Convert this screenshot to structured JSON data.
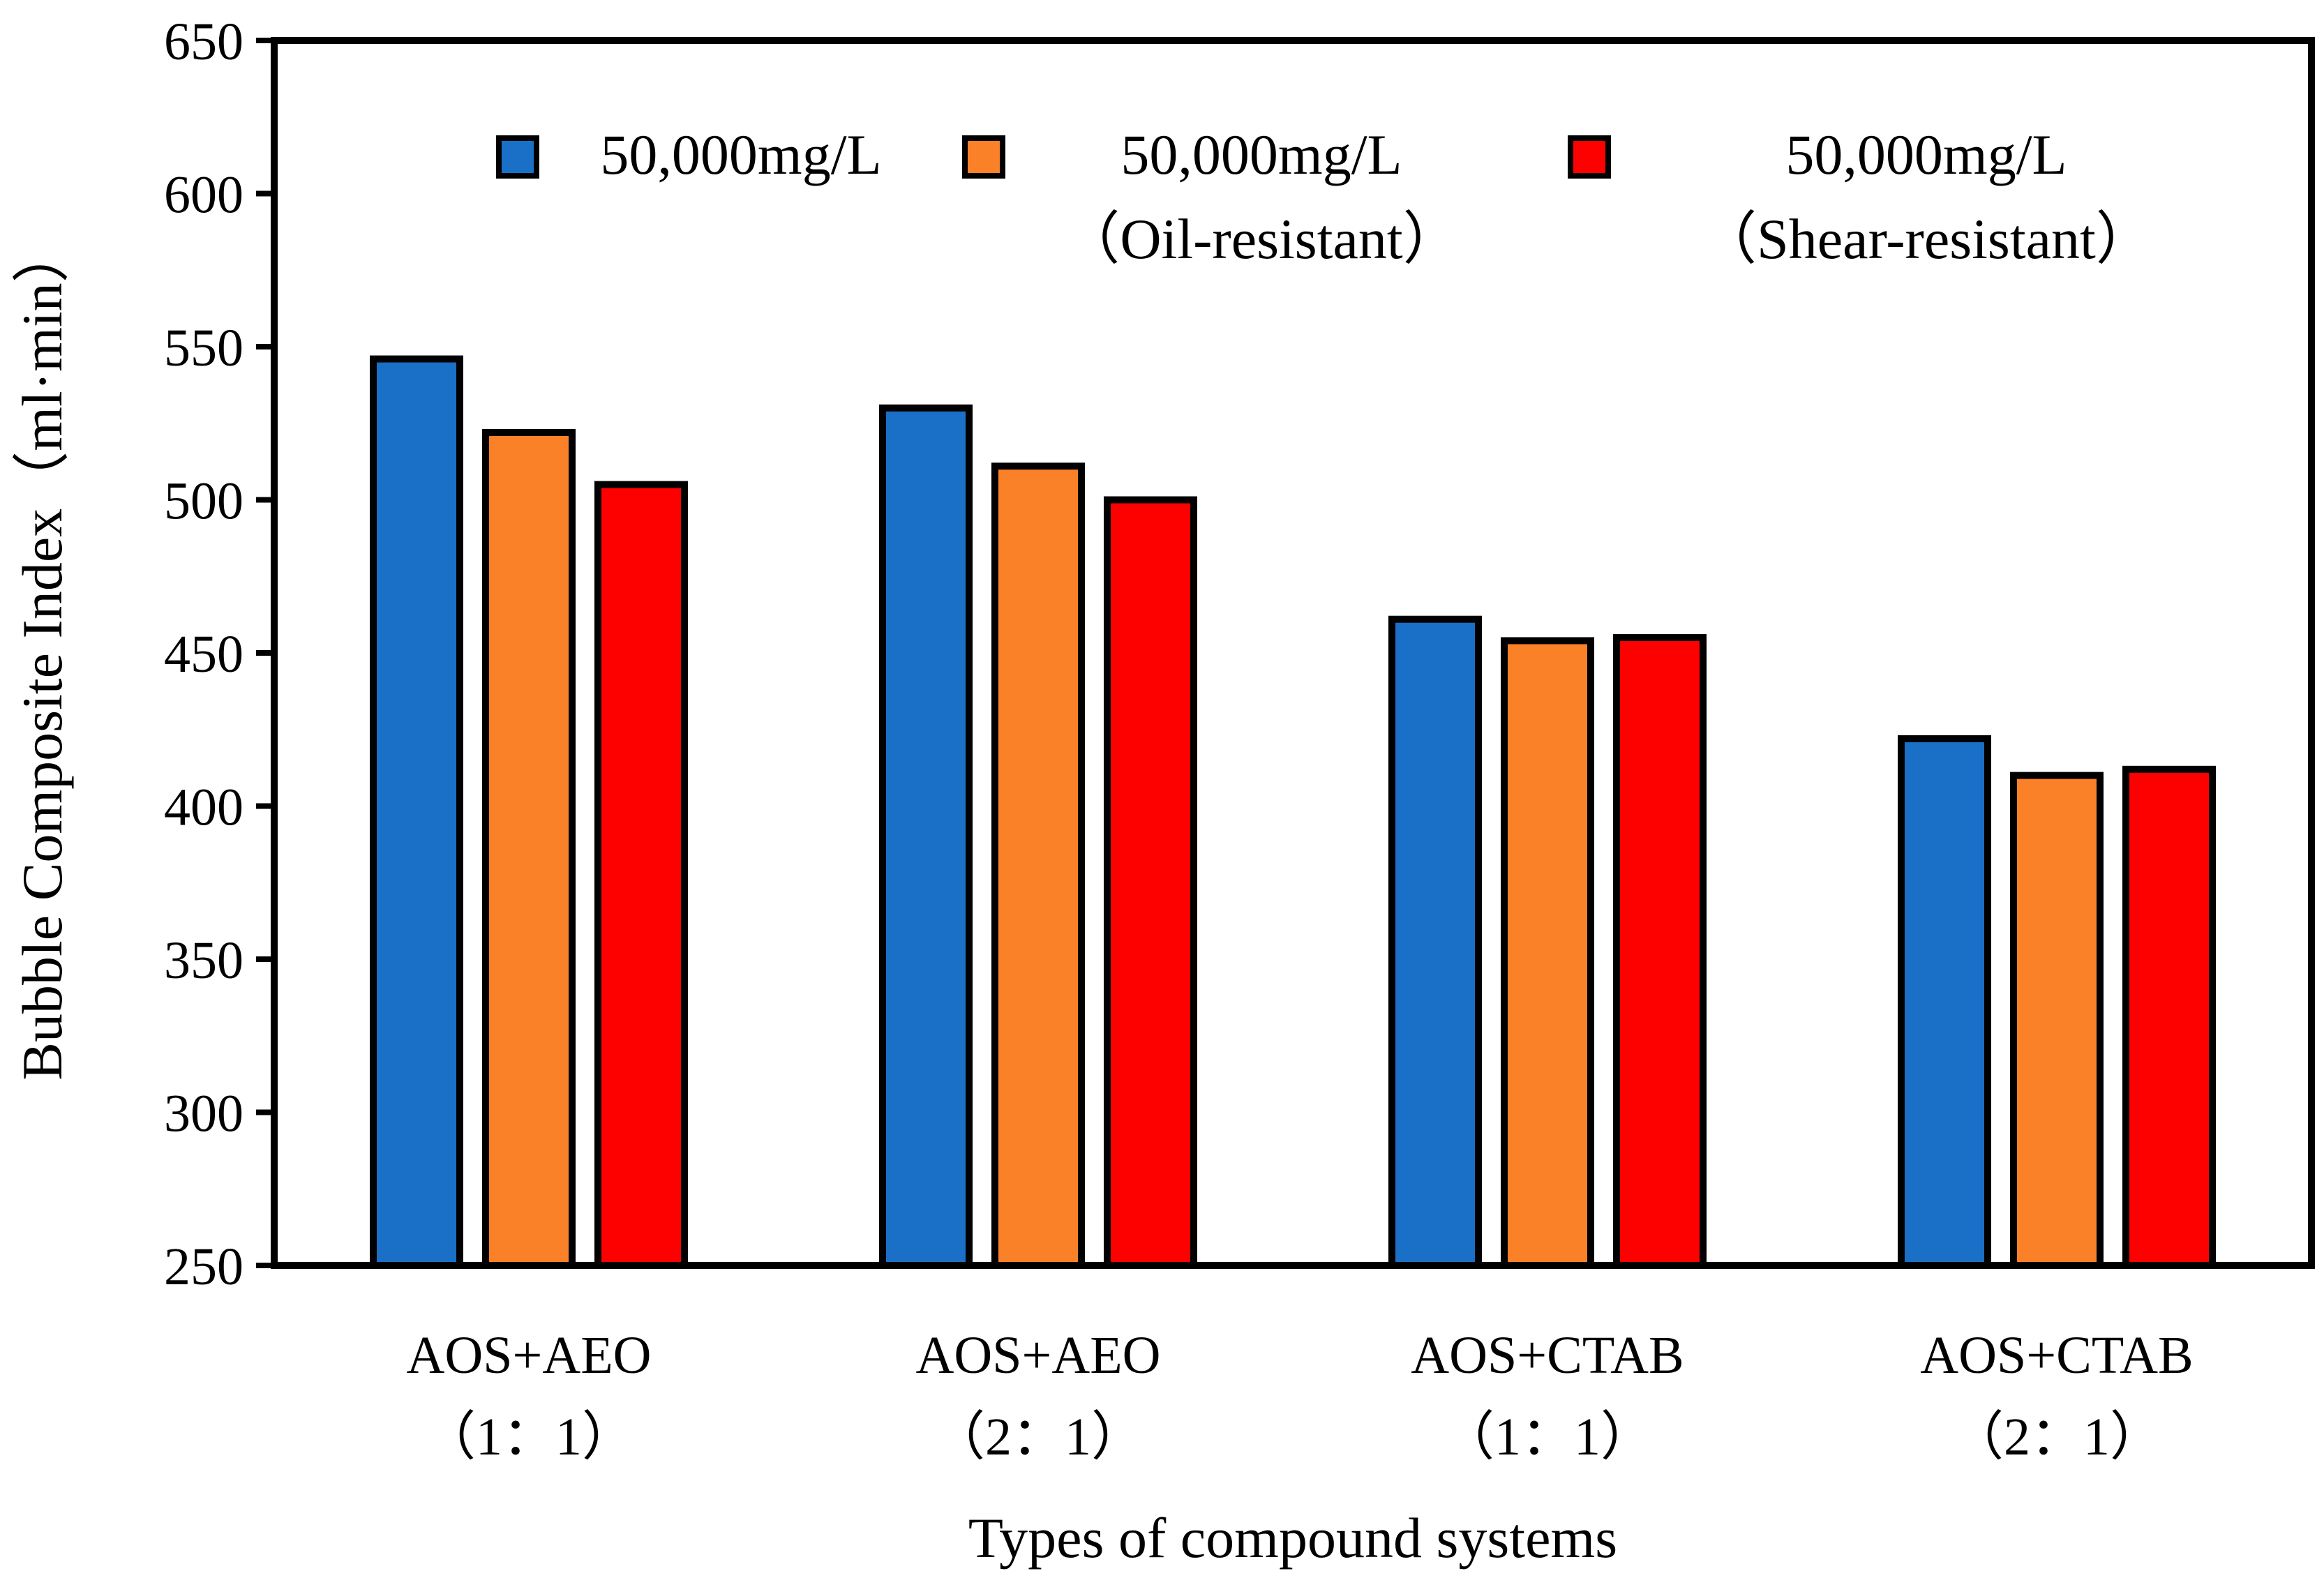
{
  "chart_data": {
    "type": "bar",
    "title": "",
    "xlabel": "Types of compound systems",
    "ylabel": "Bubble Composite Index（ml·min）",
    "ylim": [
      250,
      650
    ],
    "yticks": [
      250,
      300,
      350,
      400,
      450,
      500,
      550,
      600,
      650
    ],
    "grid": false,
    "legend_position": "top",
    "categories": [
      {
        "line1": "AOS+AEO",
        "line2": "（1：1）"
      },
      {
        "line1": "AOS+AEO",
        "line2": "（2：1）"
      },
      {
        "line1": "AOS+CTAB",
        "line2": "（1：1）"
      },
      {
        "line1": "AOS+CTAB",
        "line2": "（2：1）"
      }
    ],
    "series": [
      {
        "name": "50,000mg/L",
        "subname": "",
        "color": "#1a6fc7",
        "values": [
          546,
          530,
          461,
          422
        ]
      },
      {
        "name": "50,000mg/L",
        "subname": "（Oil-resistant）",
        "color": "#fb8128",
        "values": [
          522,
          511,
          454,
          410
        ]
      },
      {
        "name": "50,000mg/L",
        "subname": "（Shear-resistant）",
        "color": "#fd0000",
        "values": [
          505,
          500,
          455,
          412
        ]
      }
    ]
  }
}
